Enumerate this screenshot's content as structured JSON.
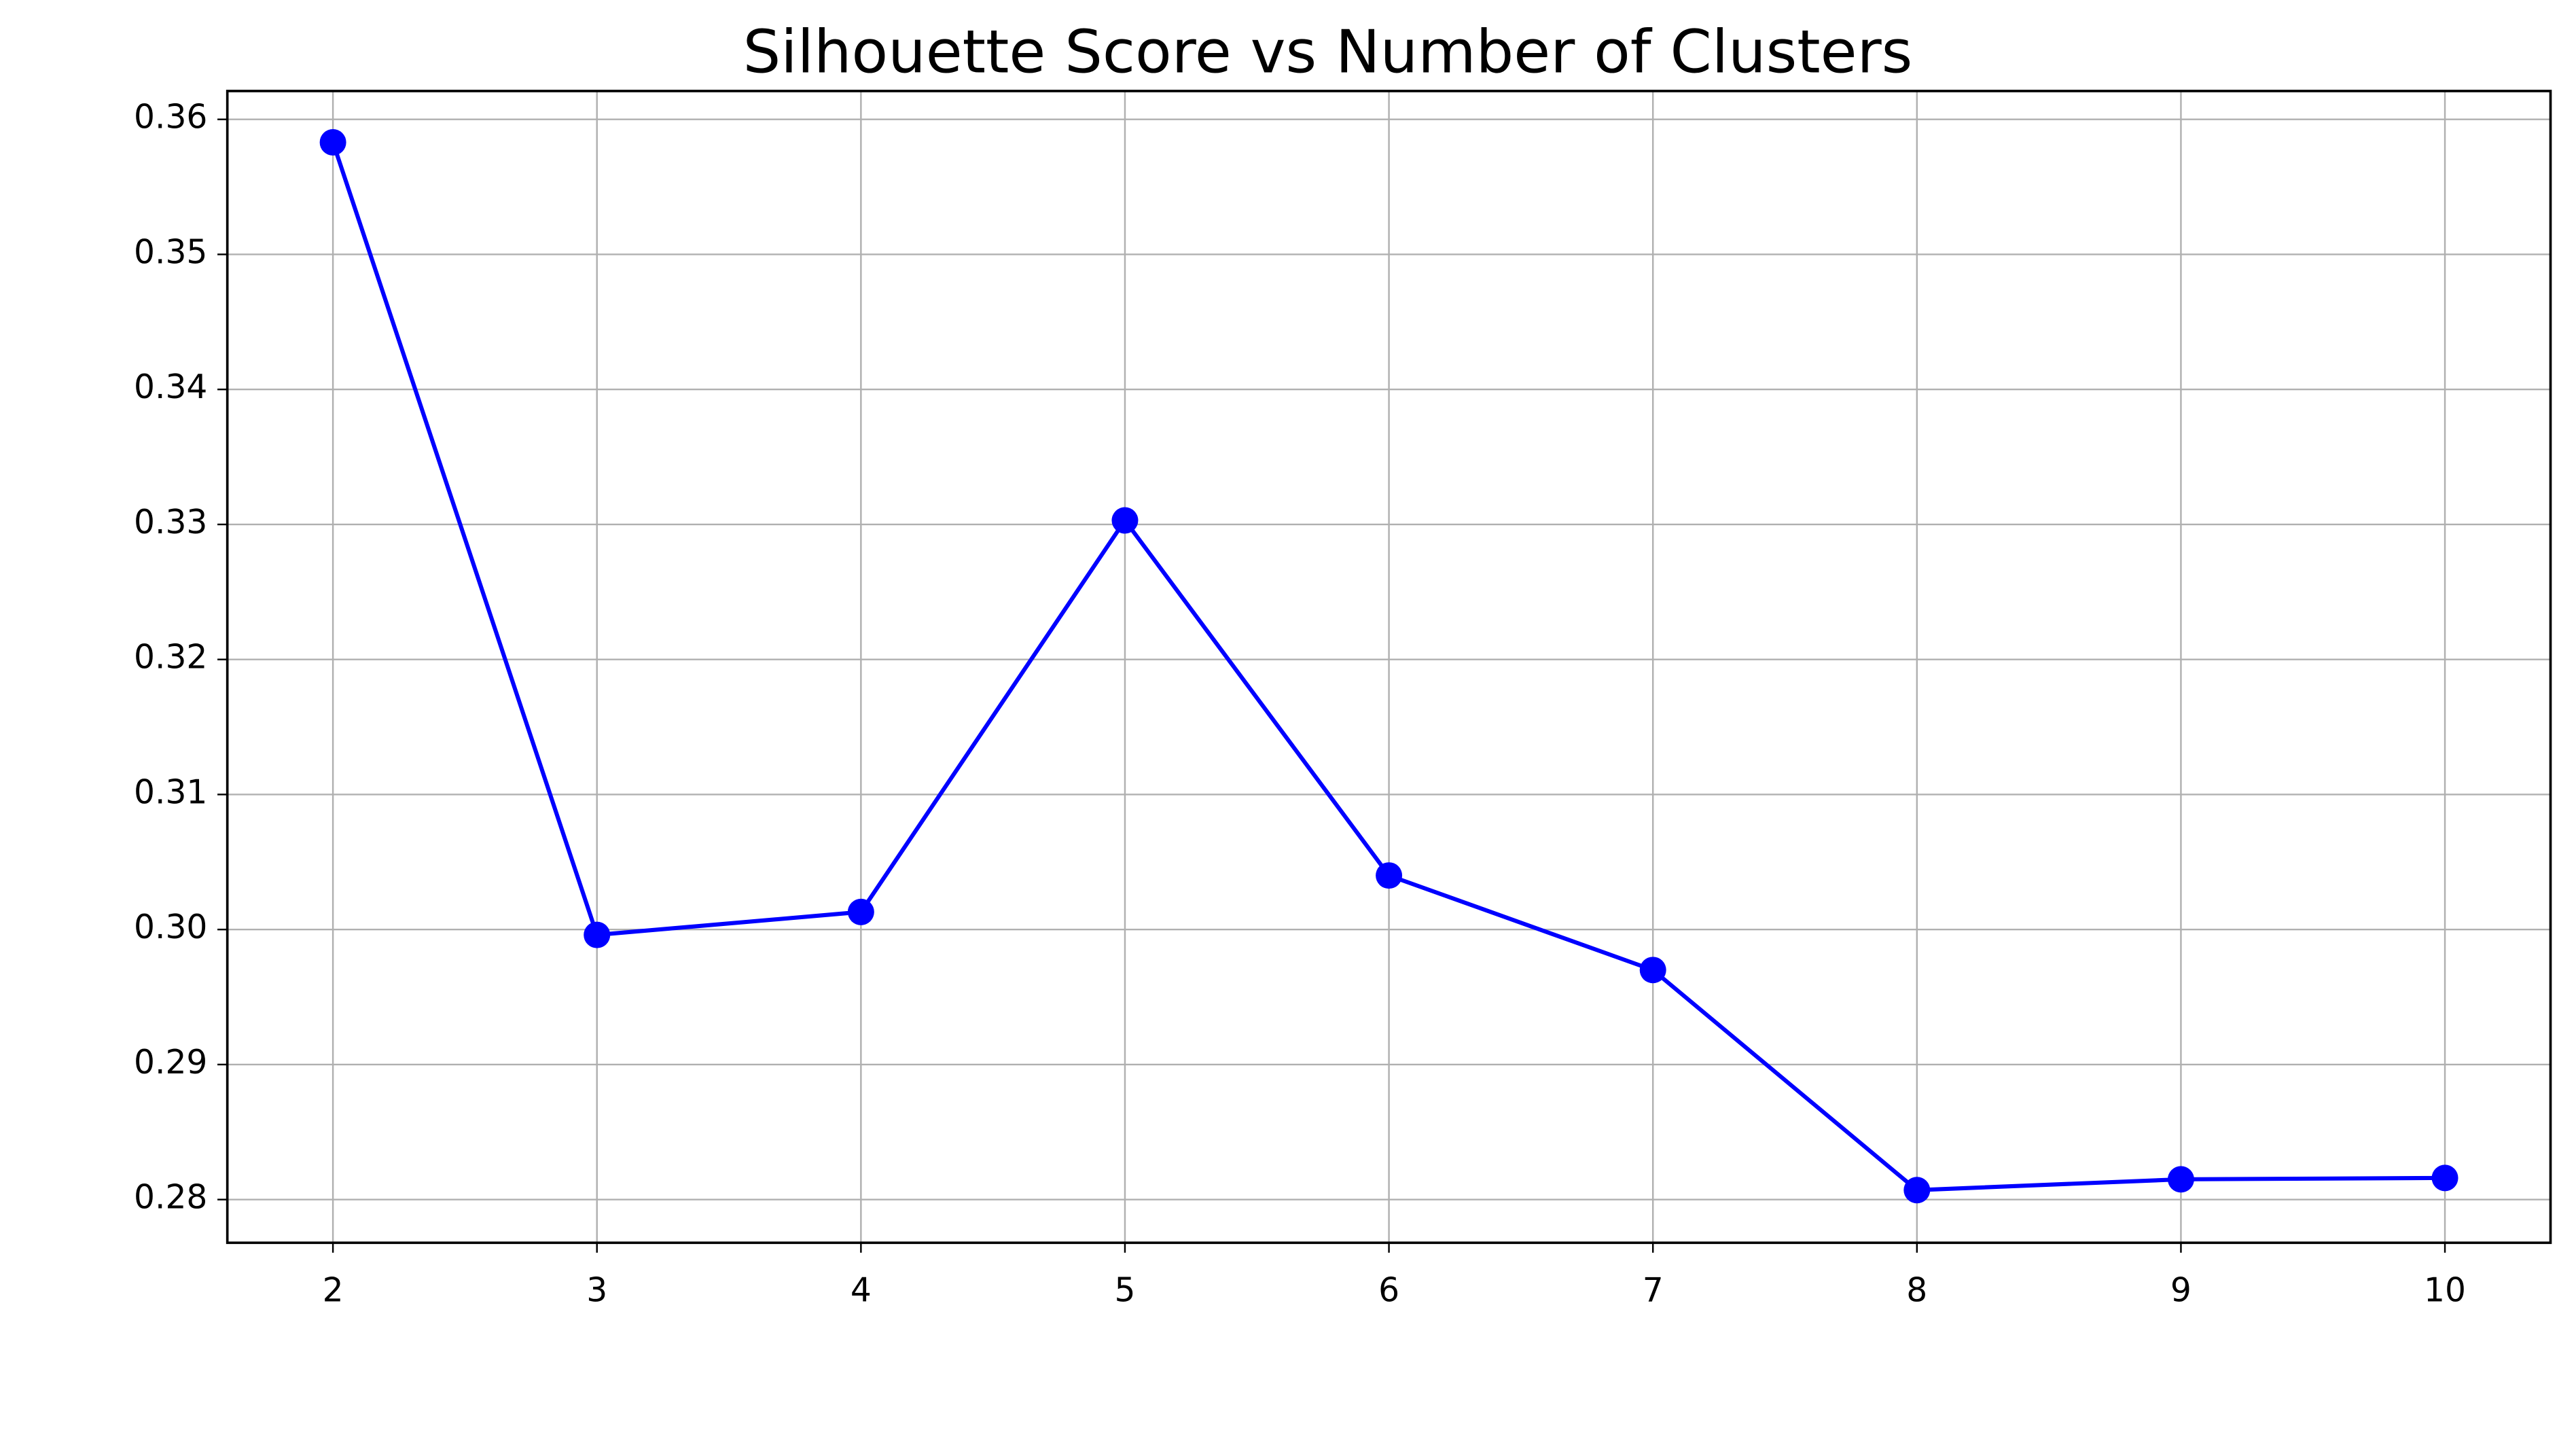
{
  "chart_data": {
    "type": "line",
    "title": "Silhouette Score vs Number of Clusters",
    "x": [
      2,
      3,
      4,
      5,
      6,
      7,
      8,
      9,
      10
    ],
    "series": [
      {
        "color": "#0000ff",
        "values": [
          0.3583,
          0.2996,
          0.3013,
          0.3303,
          0.304,
          0.297,
          0.2807,
          0.2815,
          0.2816
        ]
      }
    ],
    "xlim": [
      1.6,
      10.4
    ],
    "xticks": [
      2,
      3,
      4,
      5,
      6,
      7,
      8,
      9,
      10
    ],
    "ylim": [
      0.2768,
      0.3621
    ],
    "yticks": [
      0.28,
      0.29,
      {
        "value": 0.3,
        "label": "0.30"
      },
      0.31,
      0.32,
      0.33,
      0.34,
      0.35,
      0.36
    ],
    "grid": true
  }
}
